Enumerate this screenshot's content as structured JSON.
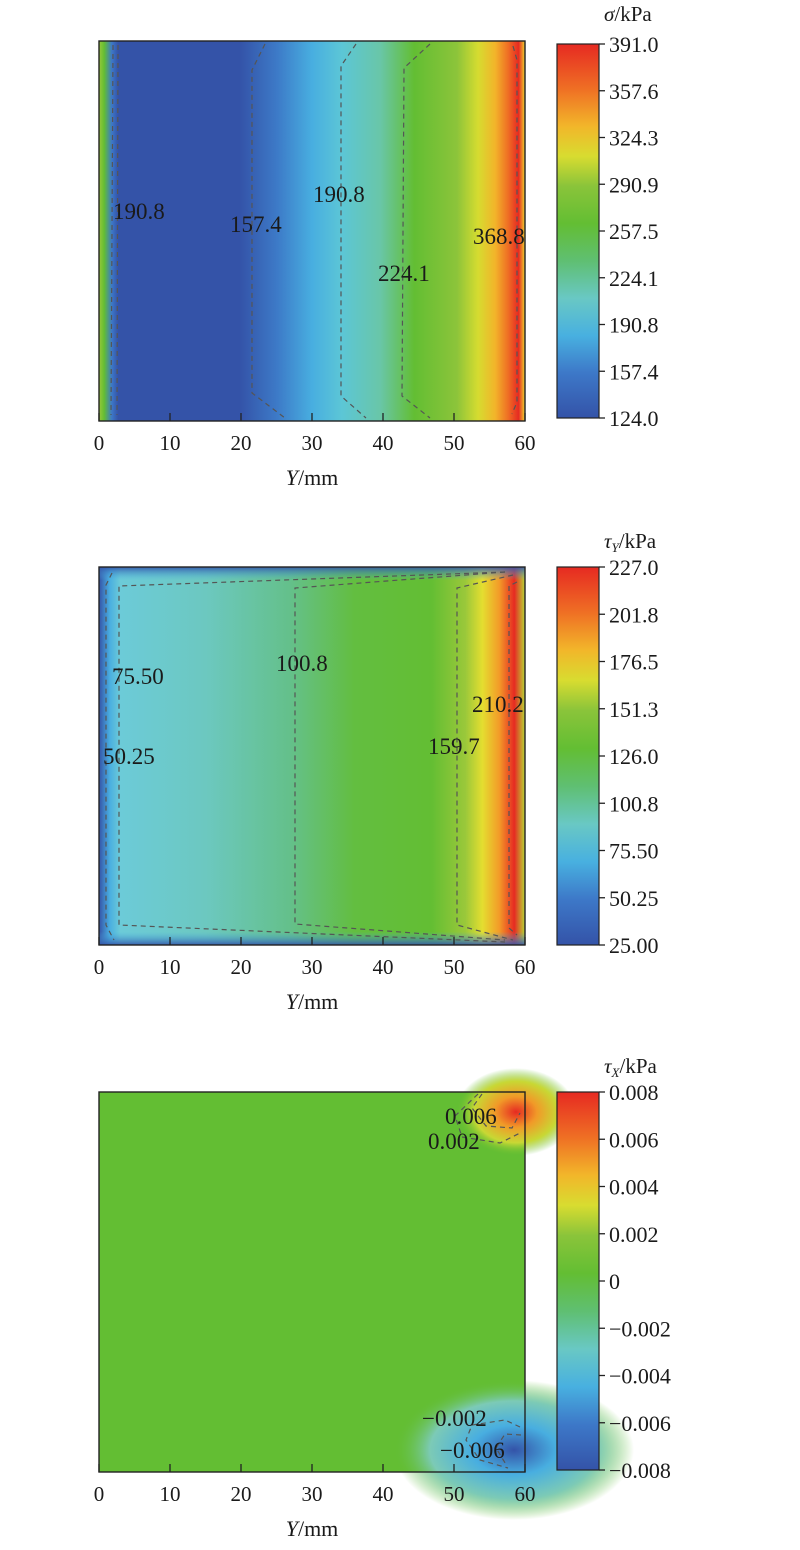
{
  "chart_data": [
    {
      "type": "heatmap",
      "xlabel_var": "Y",
      "xlabel_unit": "/mm",
      "x_ticks": [
        "0",
        "10",
        "20",
        "30",
        "40",
        "50",
        "60"
      ],
      "xlim": [
        0,
        60
      ],
      "colorbar": {
        "title_var": "σ",
        "title_sub": "",
        "title_unit": "/kPa",
        "tick_labels": [
          "391.0",
          "357.6",
          "324.3",
          "290.9",
          "257.5",
          "224.1",
          "190.8",
          "157.4",
          "124.0"
        ],
        "range": [
          124.0,
          391.0
        ]
      },
      "contour_labels": [
        "190.8",
        "157.4",
        "190.8",
        "368.8",
        "224.1"
      ],
      "colors": {
        "low": "#3453a8",
        "mid": "#63be33",
        "high": "#e62a22"
      }
    },
    {
      "type": "heatmap",
      "xlabel_var": "Y",
      "xlabel_unit": "/mm",
      "x_ticks": [
        "0",
        "10",
        "20",
        "30",
        "40",
        "50",
        "60"
      ],
      "xlim": [
        0,
        60
      ],
      "colorbar": {
        "title_var": "τ",
        "title_sub": "Y",
        "title_unit": "/kPa",
        "tick_labels": [
          "227.0",
          "201.8",
          "176.5",
          "151.3",
          "126.0",
          "100.8",
          "75.50",
          "50.25",
          "25.00"
        ],
        "range": [
          25.0,
          227.0
        ]
      },
      "contour_labels": [
        "75.50",
        "100.8",
        "210.2",
        "50.25",
        "159.7"
      ],
      "colors": {
        "low": "#3453a8",
        "mid": "#63be33",
        "high": "#e62a22"
      }
    },
    {
      "type": "heatmap",
      "xlabel_var": "Y",
      "xlabel_unit": "/mm",
      "x_ticks": [
        "0",
        "10",
        "20",
        "30",
        "40",
        "50",
        "60"
      ],
      "xlim": [
        0,
        60
      ],
      "colorbar": {
        "title_var": "τ",
        "title_sub": "X",
        "title_unit": "/kPa",
        "tick_labels": [
          "0.008",
          "0.006",
          "0.004",
          "0.002",
          "0",
          "−0.002",
          "−0.004",
          "−0.006",
          "−0.008"
        ],
        "range": [
          -0.008,
          0.008
        ]
      },
      "contour_labels": [
        "0.006",
        "0.002",
        "−0.002",
        "−0.006"
      ],
      "colors": {
        "low": "#3453a8",
        "mid": "#63be33",
        "high": "#e62a22"
      }
    }
  ]
}
